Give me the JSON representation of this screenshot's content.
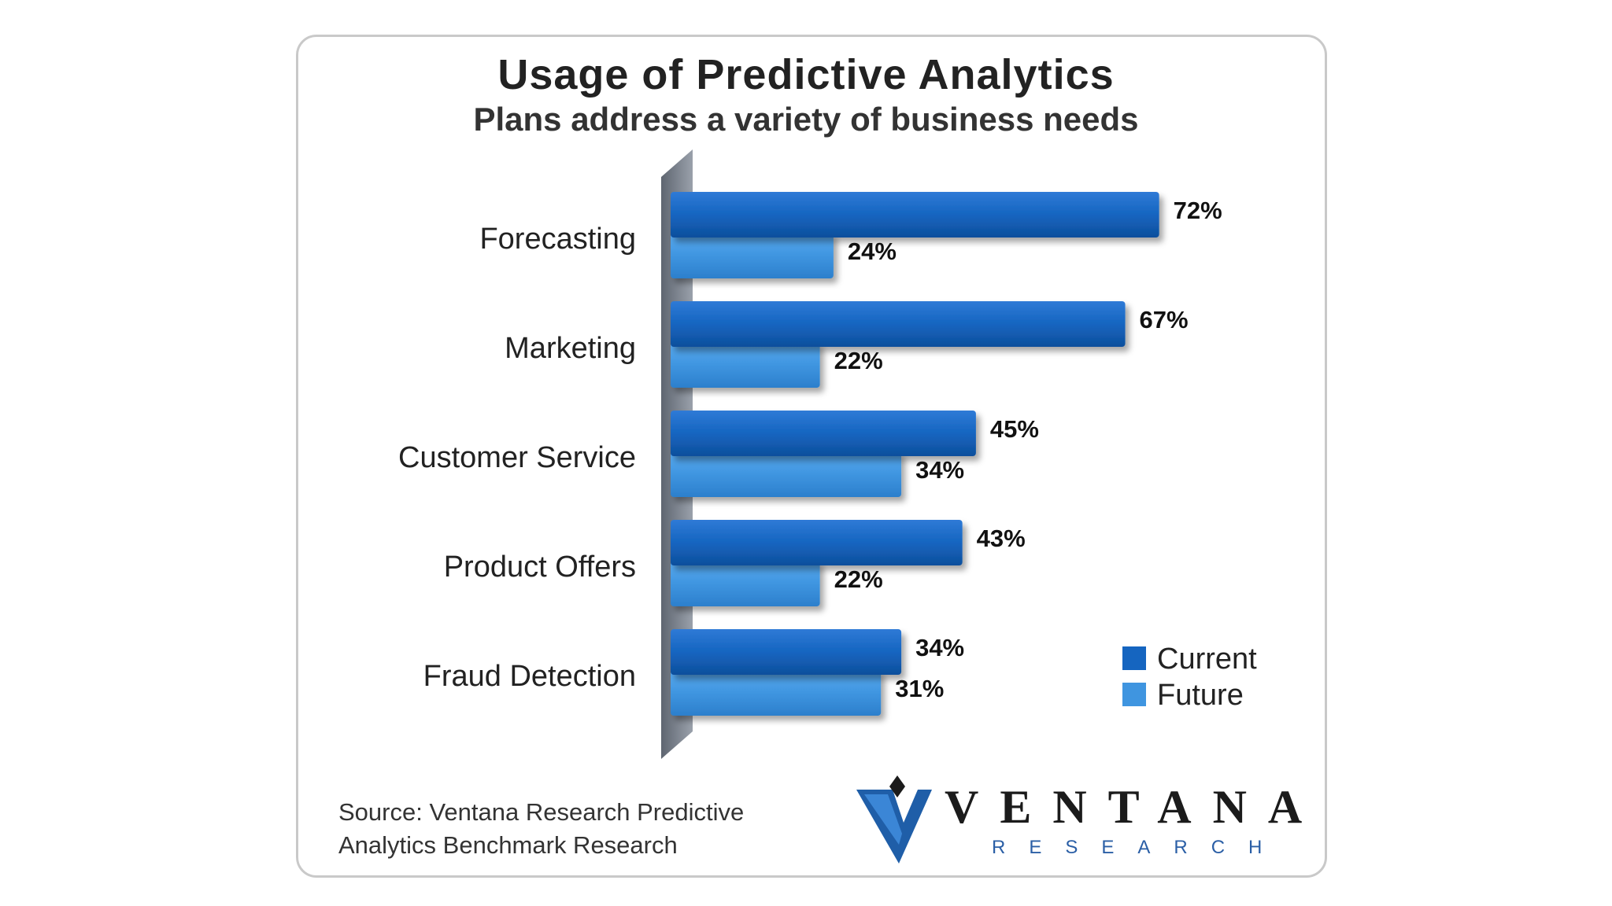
{
  "chart_data": {
    "type": "bar",
    "orientation": "horizontal",
    "title": "Usage of Predictive Analytics",
    "subtitle": "Plans address a variety of business needs",
    "categories": [
      "Forecasting",
      "Marketing",
      "Customer Service",
      "Product Offers",
      "Fraud Detection"
    ],
    "series": [
      {
        "name": "Current",
        "color": "#1565c0",
        "values": [
          72,
          67,
          45,
          43,
          34
        ],
        "labels": [
          "72%",
          "67%",
          "45%",
          "43%",
          "34%"
        ]
      },
      {
        "name": "Future",
        "color": "#3f95e0",
        "values": [
          24,
          22,
          34,
          22,
          31
        ],
        "labels": [
          "24%",
          "22%",
          "34%",
          "22%",
          "31%"
        ]
      }
    ],
    "xlim": [
      0,
      100
    ],
    "grid": false,
    "legend": "bottom-right"
  },
  "source_text_line1": "Source: Ventana Research Predictive",
  "source_text_line2": "Analytics Benchmark Research",
  "logo": {
    "word": "VENTANA",
    "sub": "RESEARCH"
  }
}
